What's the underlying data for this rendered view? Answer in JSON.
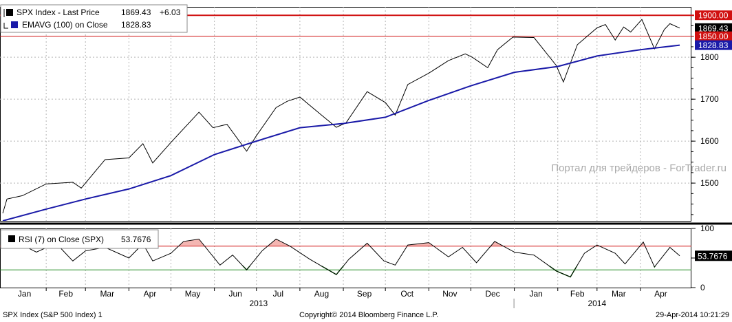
{
  "chart_data": [
    {
      "type": "line",
      "panel": "price",
      "x_unit": "month",
      "x_range": [
        "2013-01-01",
        "2014-04-29"
      ],
      "ylim": [
        1410,
        1920
      ],
      "y_ticks": [
        "1500",
        "1600",
        "1700",
        "1800"
      ],
      "grid": true,
      "legend_position": "top-left",
      "legend": [
        {
          "color": "#000000",
          "label": "SPX Index - Last Price",
          "value": "1869.43",
          "change": "+6.03"
        },
        {
          "color": "#1a1aa8",
          "label": "EMAVG (100) on Close",
          "value": "1828.83"
        }
      ],
      "series": [
        {
          "name": "SPX Index - Last Price",
          "color": "#000000",
          "x": [
            "2013-01-01",
            "2013-01-04",
            "2013-01-15",
            "2013-02-01",
            "2013-02-20",
            "2013-02-26",
            "2013-03-15",
            "2013-04-01",
            "2013-04-11",
            "2013-04-18",
            "2013-05-01",
            "2013-05-21",
            "2013-05-31",
            "2013-06-10",
            "2013-06-24",
            "2013-07-01",
            "2013-07-15",
            "2013-07-23",
            "2013-08-01",
            "2013-08-15",
            "2013-08-27",
            "2013-09-03",
            "2013-09-18",
            "2013-10-01",
            "2013-10-08",
            "2013-10-17",
            "2013-11-01",
            "2013-11-15",
            "2013-11-27",
            "2013-12-02",
            "2013-12-13",
            "2013-12-20",
            "2013-12-31",
            "2014-01-15",
            "2014-01-31",
            "2014-02-05",
            "2014-02-15",
            "2014-03-01",
            "2014-03-07",
            "2014-03-14",
            "2014-03-20",
            "2014-03-25",
            "2014-04-02",
            "2014-04-11",
            "2014-04-18",
            "2014-04-22",
            "2014-04-29"
          ],
          "y": [
            1428,
            1462,
            1470,
            1498,
            1502,
            1488,
            1556,
            1560,
            1594,
            1548,
            1597,
            1669,
            1632,
            1640,
            1576,
            1613,
            1680,
            1695,
            1705,
            1666,
            1633,
            1644,
            1718,
            1692,
            1662,
            1735,
            1762,
            1792,
            1808,
            1800,
            1775,
            1818,
            1848,
            1847,
            1780,
            1741,
            1830,
            1870,
            1878,
            1841,
            1872,
            1860,
            1890,
            1820,
            1866,
            1880,
            1869.43
          ]
        },
        {
          "name": "EMAVG (100) on Close",
          "color": "#1a1aa8",
          "x": [
            "2013-01-01",
            "2013-02-01",
            "2013-03-01",
            "2013-04-01",
            "2013-05-01",
            "2013-06-01",
            "2013-07-01",
            "2013-08-01",
            "2013-09-01",
            "2013-10-01",
            "2013-11-01",
            "2013-12-01",
            "2014-01-01",
            "2014-02-01",
            "2014-03-01",
            "2014-04-01",
            "2014-04-29"
          ],
          "y": [
            1410,
            1438,
            1462,
            1486,
            1518,
            1568,
            1600,
            1632,
            1642,
            1657,
            1697,
            1732,
            1764,
            1778,
            1803,
            1818,
            1828.83
          ]
        }
      ],
      "hlines": [
        {
          "value": 1900,
          "label": "1900.00",
          "color": "#d01010"
        },
        {
          "value": 1850,
          "label": "1850.00",
          "color": "#d01010"
        }
      ],
      "price_tags": [
        {
          "value": 1869.43,
          "label": "1869.43",
          "color": "#000000"
        },
        {
          "value": 1828.83,
          "label": "1828.83",
          "color": "#1a1aa8"
        }
      ],
      "watermark": "Портал для трейдеров - ForTrader.ru"
    },
    {
      "type": "line",
      "panel": "rsi",
      "ylim": [
        0,
        100
      ],
      "y_ticks": [
        "100",
        "50",
        "0"
      ],
      "overbought": 70,
      "oversold": 30,
      "grid": true,
      "legend_position": "top-left",
      "legend": [
        {
          "color": "#000000",
          "label": "RSI (7) on Close (SPX)",
          "value": "53.7676"
        }
      ],
      "series": [
        {
          "name": "RSI (7) on Close (SPX)",
          "color": "#000000",
          "x": [
            "2013-01-01",
            "2013-01-15",
            "2013-01-25",
            "2013-02-08",
            "2013-02-20",
            "2013-03-01",
            "2013-03-15",
            "2013-04-01",
            "2013-04-11",
            "2013-04-18",
            "2013-05-01",
            "2013-05-10",
            "2013-05-21",
            "2013-06-05",
            "2013-06-14",
            "2013-06-24",
            "2013-07-05",
            "2013-07-15",
            "2013-07-25",
            "2013-08-08",
            "2013-08-27",
            "2013-09-05",
            "2013-09-18",
            "2013-09-30",
            "2013-10-08",
            "2013-10-17",
            "2013-11-01",
            "2013-11-15",
            "2013-11-25",
            "2013-12-05",
            "2013-12-18",
            "2014-01-01",
            "2014-01-15",
            "2014-01-31",
            "2014-02-10",
            "2014-02-20",
            "2014-03-01",
            "2014-03-14",
            "2014-03-21",
            "2014-04-03",
            "2014-04-11",
            "2014-04-22",
            "2014-04-29"
          ],
          "y": [
            68,
            72,
            60,
            75,
            45,
            62,
            68,
            50,
            74,
            45,
            58,
            78,
            82,
            38,
            55,
            30,
            62,
            82,
            70,
            48,
            22,
            48,
            75,
            45,
            38,
            72,
            76,
            52,
            68,
            42,
            78,
            60,
            55,
            28,
            18,
            58,
            72,
            58,
            40,
            77,
            35,
            68,
            53.7676
          ]
        }
      ]
    }
  ],
  "x_axis": {
    "months": [
      "Jan",
      "Feb",
      "Mar",
      "Apr",
      "May",
      "Jun",
      "Jul",
      "Aug",
      "Sep",
      "Oct",
      "Nov",
      "Dec",
      "Jan",
      "Feb",
      "Mar",
      "Apr"
    ],
    "years": [
      "2013",
      "2014"
    ]
  },
  "colors": {
    "price": "#000000",
    "ema": "#1a1aa8",
    "ref_line": "#d01010",
    "rsi_overbought_fill": "#f4b6b2",
    "rsi_oversold": "#1f8a1f"
  },
  "footer": {
    "left": "SPX Index (S&P 500 Index) 1",
    "center": "Copyright© 2014 Bloomberg Finance L.P.",
    "right": "29-Apr-2014 10:21:29"
  }
}
